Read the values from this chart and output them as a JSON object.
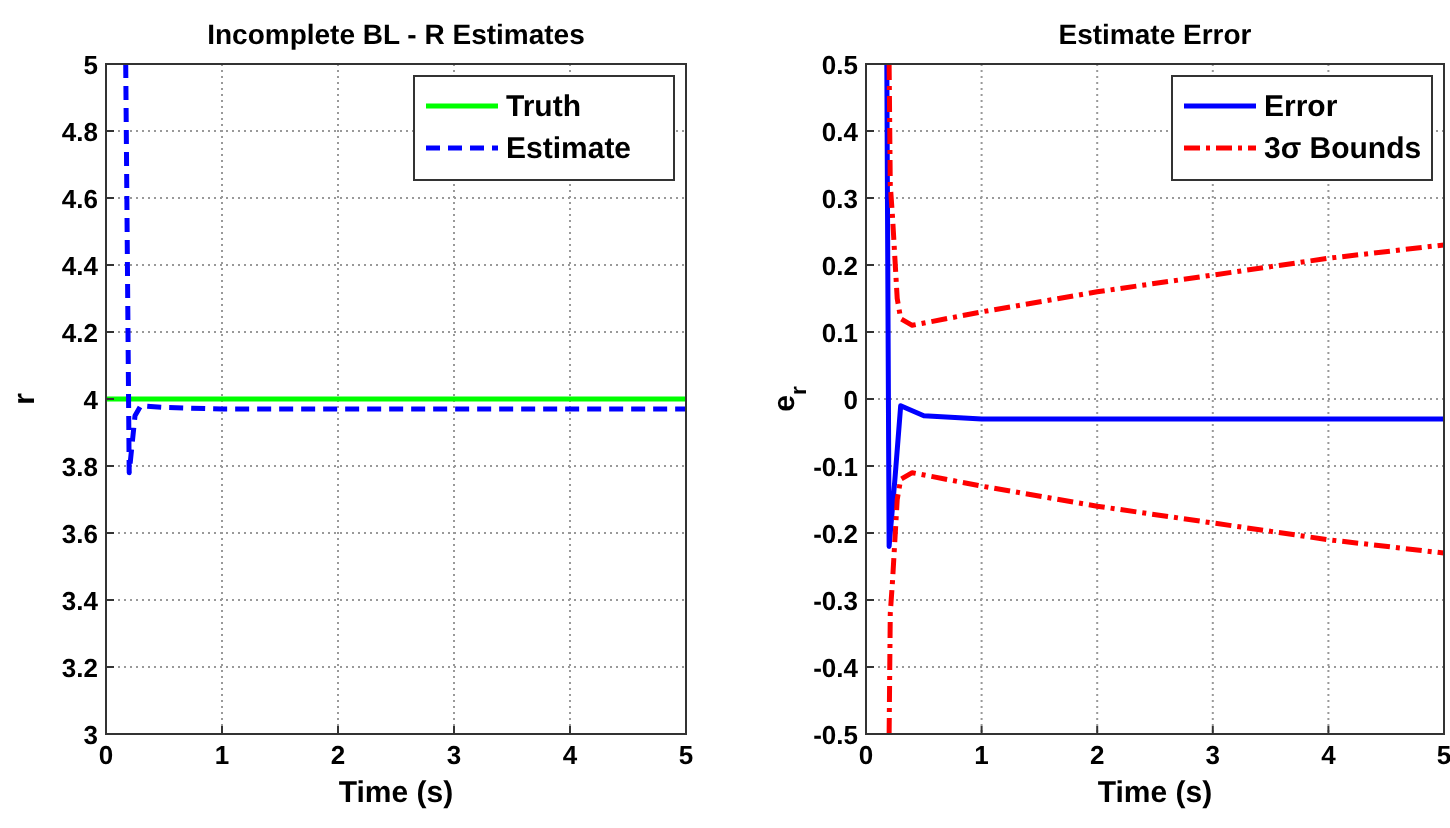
{
  "chart_data": [
    {
      "type": "line",
      "title": "Incomplete BL - R Estimates",
      "xlabel": "Time (s)",
      "ylabel": "r",
      "xlim": [
        0,
        5
      ],
      "ylim": [
        3,
        5
      ],
      "xticks": [
        0,
        1,
        2,
        3,
        4,
        5
      ],
      "yticks": [
        3,
        3.2,
        3.4,
        3.6,
        3.8,
        4,
        4.2,
        4.4,
        4.6,
        4.8,
        5
      ],
      "grid": true,
      "legend": "top right",
      "series": [
        {
          "name": "Truth",
          "color": "#00ff00",
          "line_style": "solid",
          "x": [
            0,
            5
          ],
          "values": [
            4,
            4
          ]
        },
        {
          "name": "Estimate",
          "color": "#0000ff",
          "line_style": "dashed",
          "x": [
            0.17,
            0.2,
            0.25,
            0.3,
            0.5,
            1,
            2,
            3,
            4,
            5
          ],
          "values": [
            5,
            3.78,
            3.95,
            3.98,
            3.975,
            3.97,
            3.97,
            3.97,
            3.97,
            3.97
          ]
        }
      ]
    },
    {
      "type": "line",
      "title": "Estimate Error",
      "xlabel": "Time (s)",
      "ylabel": "e$_{r}$",
      "xlim": [
        0,
        5
      ],
      "ylim": [
        -0.5,
        0.5
      ],
      "xticks": [
        0,
        1,
        2,
        3,
        4,
        5
      ],
      "yticks": [
        -0.5,
        -0.4,
        -0.3,
        -0.2,
        -0.1,
        0,
        0.1,
        0.2,
        0.3,
        0.4,
        0.5
      ],
      "grid": true,
      "legend": "top right",
      "series": [
        {
          "name": "Error",
          "color": "#0000ff",
          "line_style": "solid",
          "x": [
            0.18,
            0.2,
            0.25,
            0.3,
            0.5,
            1,
            2,
            3,
            4,
            5
          ],
          "values": [
            0.5,
            -0.22,
            -0.12,
            -0.01,
            -0.025,
            -0.03,
            -0.03,
            -0.03,
            -0.03,
            -0.03
          ]
        },
        {
          "name": "3σ Bounds",
          "color": "#ff0000",
          "line_style": "dashdot",
          "x": [
            0.2,
            0.21,
            0.23,
            0.27,
            0.3,
            0.4,
            1,
            2,
            3,
            4,
            5
          ],
          "values": [
            0.5,
            0.32,
            0.27,
            0.15,
            0.12,
            0.11,
            0.13,
            0.16,
            0.185,
            0.21,
            0.23
          ]
        },
        {
          "color": "#ff0000",
          "line_style": "dashdot",
          "x": [
            0.2,
            0.21,
            0.23,
            0.27,
            0.3,
            0.4,
            1,
            2,
            3,
            4,
            5
          ],
          "values": [
            -0.5,
            -0.32,
            -0.27,
            -0.15,
            -0.12,
            -0.11,
            -0.13,
            -0.16,
            -0.185,
            -0.21,
            -0.23
          ]
        }
      ]
    }
  ]
}
